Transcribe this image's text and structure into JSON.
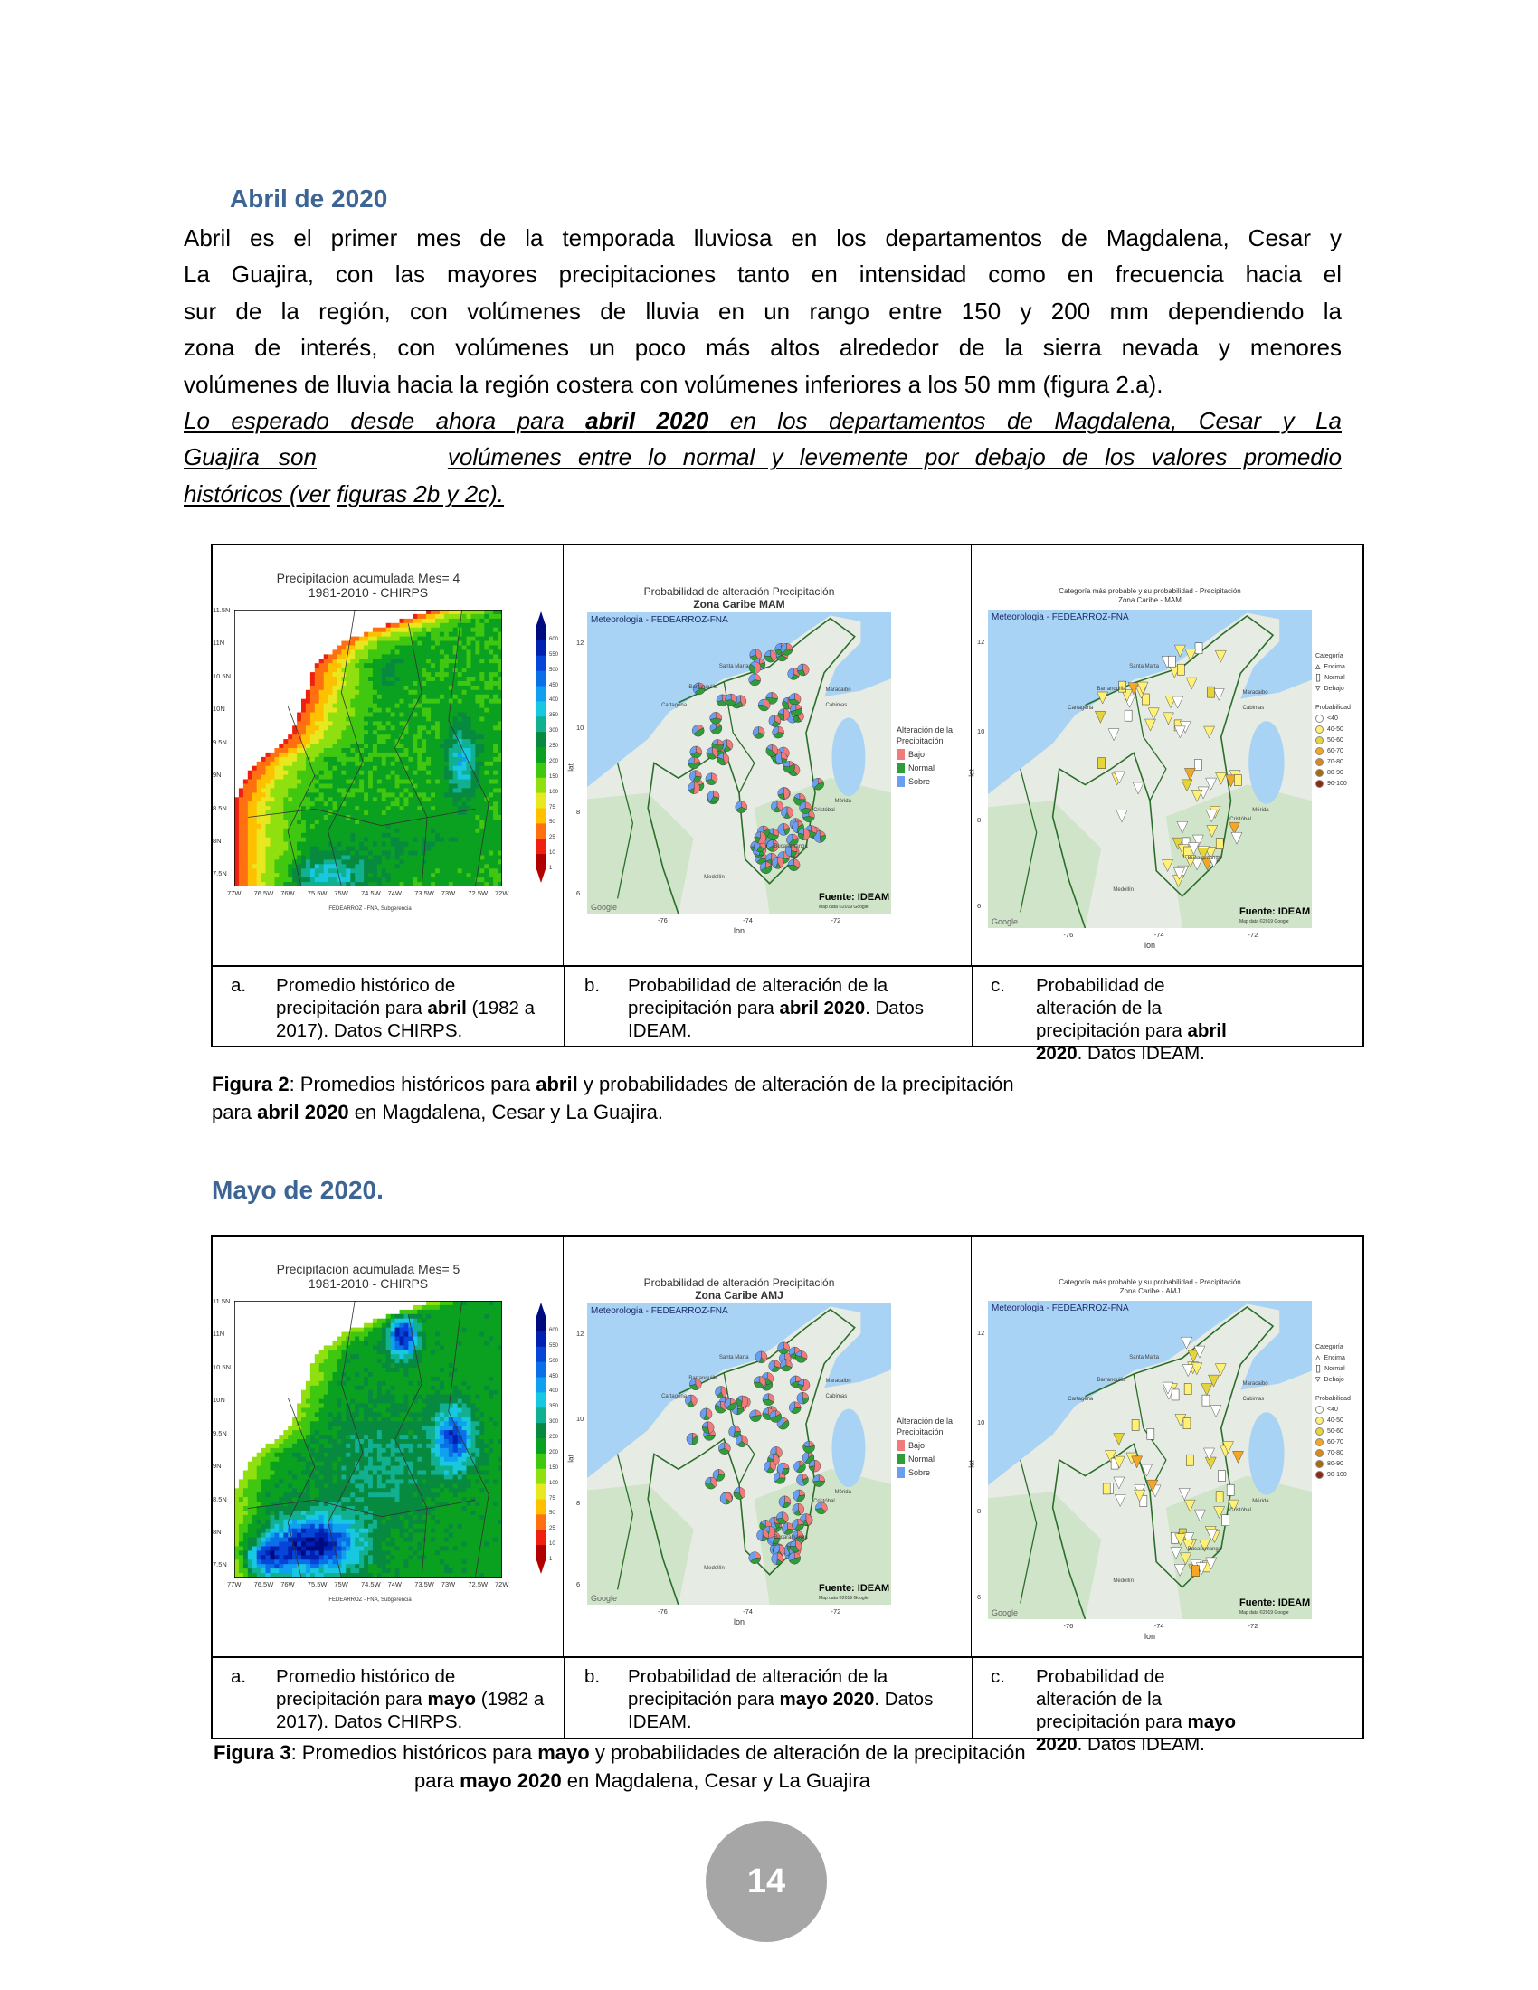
{
  "section_april": {
    "heading": "Abril de 2020",
    "lines": [
      "Abril es el primer mes de la temporada lluviosa en los departamentos de Magdalena, Cesar y",
      "La Guajira, con las mayores precipitaciones tanto en intensidad como en frecuencia hacia el",
      "sur de la región, con volúmenes de lluvia en un rango entre 150 y 200 mm dependiendo la",
      "zona de interés, con volúmenes un poco más altos alrededor de la sierra nevada y menores",
      "volúmenes de lluvia hacia la región costera con volúmenes inferiores a los 50 mm (figura 2.a)."
    ],
    "outlook": {
      "l1a": "Lo esperado desde ahora para ",
      "l1b": "abril 2020",
      "l1c": " en los departamentos de Magdalena, Cesar y La",
      "l2a": "Guajira son",
      "l2b": "volúmenes entre lo normal y levemente por debajo de los valores promedio",
      "l3a": "históricos (ver",
      "l3b": "figuras 2b y 2c)."
    }
  },
  "figure2": {
    "map_a": {
      "title1": "Precipitacion acumulada Mes= 4",
      "title2": "1981-2010 - CHIRPS",
      "footer": "FEDEARROZ - FNA, Subgerencia",
      "month": 4
    },
    "map_b": {
      "title1": "Probabilidad de alteración Precipitación",
      "title2": "Zona Caribe MAM"
    },
    "map_c": {
      "title1": "Categoría más probable y su probabilidad - Precipitación",
      "title2": "Zona Caribe - MAM"
    },
    "captions": [
      {
        "label": "a.",
        "t1": "Promedio histórico de precipitación para ",
        "b1": "abril",
        "t2": " (1982 a 2017). Datos CHIRPS.",
        "b2": "",
        "t3": ""
      },
      {
        "label": "b.",
        "t1": "Probabilidad de alteración de la precipitación para ",
        "b1": "abril 2020",
        "t2": ". Datos IDEAM.",
        "b2": "",
        "t3": ""
      },
      {
        "label": "c.",
        "t1": "Probabilidad de alteración de la precipitación para ",
        "b1": "abril 2020",
        "t2": ". Datos IDEAM.",
        "b2": "",
        "t3": ""
      }
    ],
    "caption": {
      "prefix": "Figura 2",
      "t1": ": Promedios históricos para ",
      "b1": "abril",
      "t2": " y probabilidades de alteración de la precipitación",
      "t3": "para ",
      "b2": "abril 2020",
      "t4": " en Magdalena, Cesar y La Guajira."
    }
  },
  "section_may": {
    "heading": "Mayo de 2020."
  },
  "figure3": {
    "map_a": {
      "title1": "Precipitacion acumulada Mes= 5",
      "title2": "1981-2010 - CHIRPS",
      "footer": "FEDEARROZ - FNA, Subgerencia",
      "month": 5
    },
    "map_b": {
      "title1": "Probabilidad de alteración Precipitación",
      "title2": "Zona Caribe AMJ"
    },
    "map_c": {
      "title1": "Categoría más probable y su probabilidad - Precipitación",
      "title2": "Zona Caribe - AMJ"
    },
    "captions": [
      {
        "label": "a.",
        "t1": "Promedio histórico de precipitación para ",
        "b1": "mayo",
        "t2": " (1982 a 2017). Datos CHIRPS."
      },
      {
        "label": "b.",
        "t1": "Probabilidad de alteración de la precipitación para ",
        "b1": "mayo 2020",
        "t2": ". Datos IDEAM."
      },
      {
        "label": "c.",
        "t1": "Probabilidad de alteración de la precipitación para ",
        "b1": "mayo 2020",
        "t2": ". Datos IDEAM."
      }
    ],
    "caption": {
      "prefix": "Figura 3",
      "t1": ": Promedios históricos para ",
      "b1": "mayo",
      "t2": " y probabilidades de alteración de la precipitación",
      "t3": "para ",
      "b2": "mayo 2020",
      "t4": " en Magdalena, Cesar y La Guajira"
    }
  },
  "map_common": {
    "precip_lat_ticks": [
      "11.5N",
      "11N",
      "10.5N",
      "10N",
      "9.5N",
      "9N",
      "8.5N",
      "8N",
      "7.5N"
    ],
    "precip_lon_ticks": [
      "77W",
      "76.5W",
      "76W",
      "75.5W",
      "75W",
      "74.5W",
      "74W",
      "73.5W",
      "73W",
      "72.5W",
      "72W"
    ],
    "colorbar_ticks": [
      "600",
      "550",
      "500",
      "450",
      "400",
      "350",
      "300",
      "250",
      "200",
      "150",
      "100",
      "75",
      "50",
      "25",
      "10",
      "1"
    ],
    "colorbar_colors": [
      "#000a80",
      "#0020b0",
      "#0545d8",
      "#0a70e8",
      "#10a0f0",
      "#18c8e0",
      "#10b090",
      "#078a40",
      "#0aa020",
      "#40c810",
      "#90e010",
      "#e8e820",
      "#ffc000",
      "#ff7010",
      "#f02010",
      "#b00000"
    ],
    "credit": "Meteorologia - FEDEARROZ-FNA",
    "source": "Fuente: IDEAM",
    "google": "Google",
    "mapdata": "Map data ©2019 Google",
    "lat_ticks": [
      "12",
      "10",
      "8",
      "6"
    ],
    "lon_ticks": [
      "-76",
      "-74",
      "-72"
    ],
    "xlabel": "lon",
    "ylabel": "lat",
    "legend_b": {
      "title1": "Alteración de la",
      "title2": "Precipitación",
      "items": [
        {
          "label": "Bajo",
          "color": "#f07b7b"
        },
        {
          "label": "Normal",
          "color": "#2f9e3a"
        },
        {
          "label": "Sobre",
          "color": "#6b9ef0"
        }
      ]
    },
    "legend_c": {
      "cat_title": "Categoría",
      "cats": [
        "Encima",
        "Normal",
        "Debajo"
      ],
      "prob_title": "Probabilidad",
      "probs": [
        {
          "label": "<40",
          "color": "#ffffff"
        },
        {
          "label": "40-50",
          "color": "#fff176"
        },
        {
          "label": "50-60",
          "color": "#e6d53a"
        },
        {
          "label": "60-70",
          "color": "#f5a623"
        },
        {
          "label": "70-80",
          "color": "#d98a1a"
        },
        {
          "label": "80-90",
          "color": "#a86a10"
        },
        {
          "label": "90-100",
          "color": "#8b2a10"
        }
      ]
    },
    "place_names": [
      "Santa Marta",
      "Barranquilla",
      "Cartagena",
      "Maracaibo",
      "Cabimas",
      "Medellín",
      "Bucaramanga",
      "Cristóbal",
      "Mérida"
    ]
  },
  "page": {
    "number": "14"
  },
  "colors": {
    "heading": "#3c6595",
    "page_circle": "#a6a6a6"
  }
}
